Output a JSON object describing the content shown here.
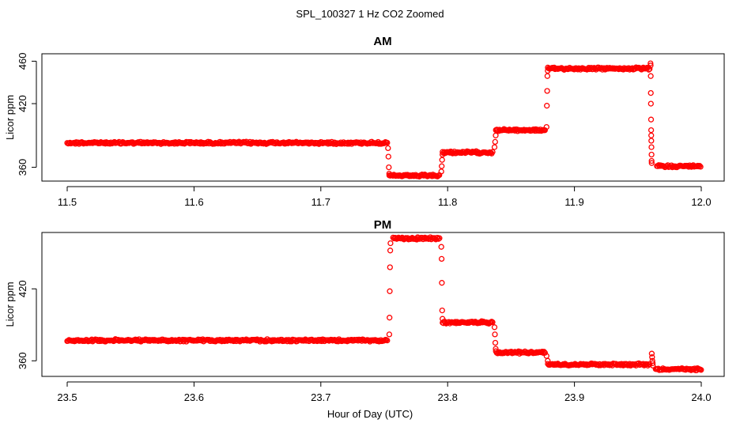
{
  "figure": {
    "title": "SPL_100327  1 Hz CO2 Zoomed",
    "xlabel": "Hour of Day (UTC)"
  },
  "colors": {
    "points": "#ff0000",
    "axes": "#000000",
    "background": "#ffffff"
  },
  "chart_data": [
    {
      "type": "scatter",
      "title": "AM",
      "ylabel": "Licor ppm",
      "xlim": [
        11.5,
        12.0
      ],
      "ylim": [
        347,
        467
      ],
      "x_ticks": [
        11.5,
        11.6,
        11.7,
        11.8,
        11.9,
        12.0
      ],
      "x_tick_labels": [
        "11.5",
        "11.6",
        "11.7",
        "11.8",
        "11.9",
        "12.0"
      ],
      "y_ticks": [
        360,
        420,
        460
      ],
      "y_tick_labels": [
        "360",
        "420",
        "460"
      ],
      "grid": false,
      "marker": "open-circle",
      "sampling": "1 Hz",
      "segments": [
        {
          "x_start": 11.5,
          "x_end": 11.753,
          "y": 383
        },
        {
          "x_start": 11.754,
          "x_end": 11.794,
          "y": 352
        },
        {
          "x_start": 11.796,
          "x_end": 11.836,
          "y": 374
        },
        {
          "x_start": 11.838,
          "x_end": 11.877,
          "y": 395
        },
        {
          "x_start": 11.879,
          "x_end": 11.96,
          "y": 453
        },
        {
          "x_start": 11.965,
          "x_end": 12.0,
          "y": 361
        }
      ],
      "transitions": [
        {
          "x": 11.753,
          "y": [
            378,
            370,
            360,
            354
          ]
        },
        {
          "x": 11.795,
          "y": [
            356,
            361,
            367,
            372
          ]
        },
        {
          "x": 11.837,
          "y": [
            379,
            384,
            390
          ]
        },
        {
          "x": 11.878,
          "y": [
            398,
            418,
            432,
            446,
            451
          ]
        },
        {
          "x": 11.96,
          "y": [
            458,
            456,
            446,
            430,
            420,
            405,
            395,
            390,
            385,
            379,
            372,
            366,
            364
          ]
        }
      ]
    },
    {
      "type": "scatter",
      "title": "PM",
      "ylabel": "Licor ppm",
      "xlim": [
        23.5,
        24.0
      ],
      "ylim": [
        347,
        467
      ],
      "x_ticks": [
        23.5,
        23.6,
        23.7,
        23.8,
        23.9,
        24.0
      ],
      "x_tick_labels": [
        "23.5",
        "23.6",
        "23.7",
        "23.8",
        "23.9",
        "24.0"
      ],
      "y_ticks": [
        360,
        420
      ],
      "y_tick_labels": [
        "360",
        "420"
      ],
      "grid": false,
      "marker": "open-circle",
      "sampling": "1 Hz",
      "segments": [
        {
          "x_start": 23.5,
          "x_end": 23.753,
          "y": 377
        },
        {
          "x_start": 23.757,
          "x_end": 23.794,
          "y": 462
        },
        {
          "x_start": 23.796,
          "x_end": 23.836,
          "y": 392
        },
        {
          "x_start": 23.838,
          "x_end": 23.877,
          "y": 367
        },
        {
          "x_start": 23.879,
          "x_end": 23.96,
          "y": 357
        },
        {
          "x_start": 23.964,
          "x_end": 24.0,
          "y": 353
        }
      ],
      "transitions": [
        {
          "x": 23.754,
          "y": [
            382,
            396,
            418,
            438,
            452,
            458
          ]
        },
        {
          "x": 23.795,
          "y": [
            455,
            445,
            425,
            402,
            395
          ]
        },
        {
          "x": 23.837,
          "y": [
            388,
            382,
            375,
            370
          ]
        },
        {
          "x": 23.878,
          "y": [
            364,
            360
          ]
        },
        {
          "x": 23.961,
          "y": [
            366,
            363,
            360,
            358,
            356
          ]
        }
      ]
    }
  ]
}
